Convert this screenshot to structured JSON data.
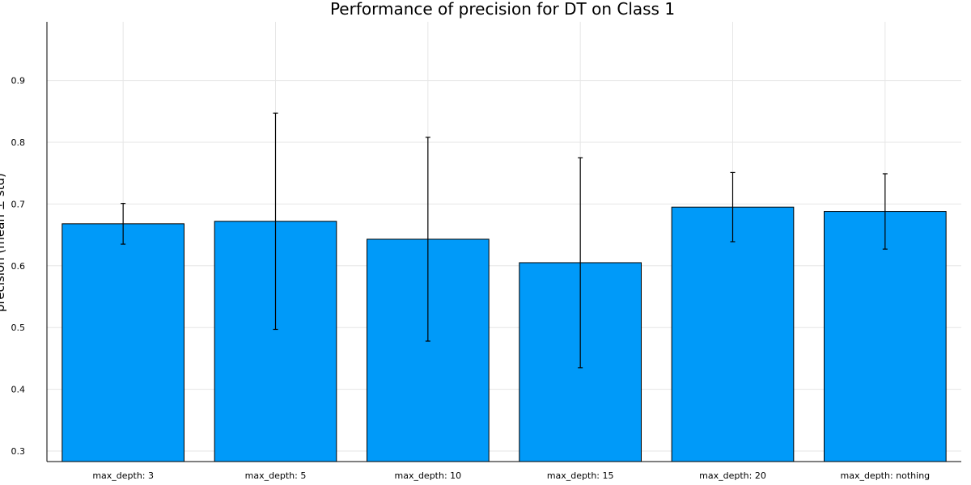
{
  "chart_data": {
    "type": "bar",
    "title": "Performance of precision for DT on Class 1",
    "xlabel": "",
    "ylabel": "precision (mean ± std)",
    "categories": [
      "max_depth: 3",
      "max_depth: 5",
      "max_depth: 10",
      "max_depth: 15",
      "max_depth: 20",
      "max_depth: nothing"
    ],
    "values": [
      0.668,
      0.672,
      0.643,
      0.605,
      0.695,
      0.688
    ],
    "errors": [
      0.033,
      0.175,
      0.165,
      0.17,
      0.056,
      0.061
    ],
    "yticks": [
      0.3,
      0.4,
      0.5,
      0.6,
      0.7,
      0.8,
      0.9
    ],
    "ylim": [
      0.283,
      0.995
    ],
    "grid": true,
    "legend": "none",
    "colors": {
      "bar": "#009af9",
      "bar_edge": "#000000",
      "grid": "#e6e6e6",
      "axis": "#000000"
    }
  }
}
